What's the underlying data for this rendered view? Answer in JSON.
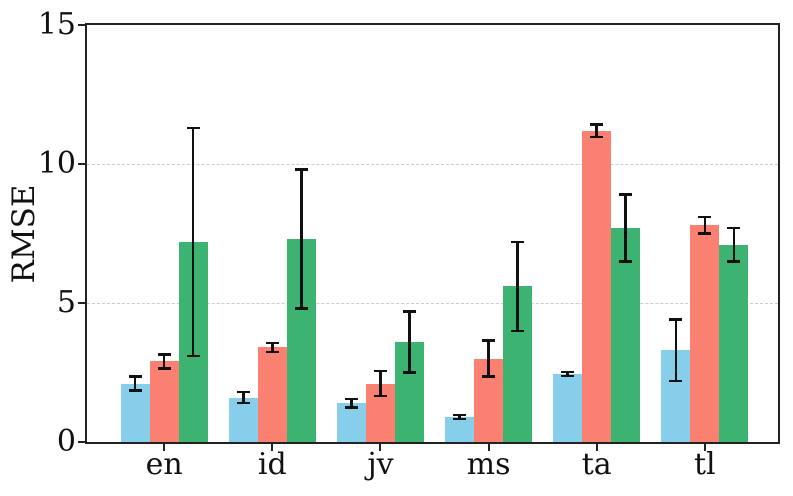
{
  "chart_data": {
    "type": "bar",
    "title": "",
    "xlabel": "",
    "ylabel": "RMSE",
    "categories": [
      "en",
      "id",
      "jv",
      "ms",
      "ta",
      "tl"
    ],
    "series": [
      {
        "name": "blue",
        "color": "#87CEEB",
        "values": [
          2.1,
          1.6,
          1.4,
          0.9,
          2.45,
          3.3
        ],
        "errors": [
          0.25,
          0.2,
          0.15,
          0.07,
          0.07,
          1.1
        ]
      },
      {
        "name": "salmon",
        "color": "#FA8072",
        "values": [
          2.9,
          3.4,
          2.1,
          3.0,
          11.2,
          7.8
        ],
        "errors": [
          0.25,
          0.17,
          0.45,
          0.65,
          0.22,
          0.3
        ]
      },
      {
        "name": "green",
        "color": "#3CB371",
        "values": [
          7.2,
          7.3,
          3.6,
          5.6,
          7.7,
          7.1
        ],
        "errors": [
          4.1,
          2.5,
          1.1,
          1.6,
          1.2,
          0.6
        ]
      }
    ],
    "error_bars": true,
    "error_bar_color": "#111111",
    "ylim": [
      0,
      15
    ],
    "yticks": [
      0,
      5,
      10,
      15
    ],
    "ytick_labels": [
      "0",
      "5",
      "10",
      "15"
    ],
    "grid": {
      "axis": "y",
      "values": [
        5,
        10
      ],
      "style": "dashed",
      "color": "#cccccc"
    },
    "legend": "none",
    "spine_color": "#222222",
    "background": "#ffffff"
  }
}
